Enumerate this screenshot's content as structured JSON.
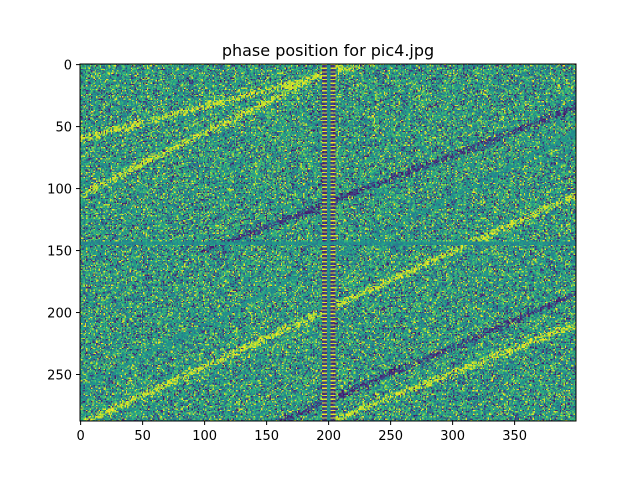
{
  "chart_data": {
    "type": "heatmap",
    "title": "phase position for pic4.jpg",
    "image_width": 400,
    "image_height": 288,
    "colormap": "viridis",
    "origin": "upper",
    "xlim": [
      -0.5,
      399.5
    ],
    "ylim": [
      287.5,
      -0.5
    ],
    "x_ticks": [
      0,
      50,
      100,
      150,
      200,
      250,
      300,
      350
    ],
    "y_ticks": [
      0,
      50,
      100,
      150,
      200,
      250
    ],
    "x_tick_labels": [
      "0",
      "50",
      "100",
      "150",
      "200",
      "250",
      "300",
      "350"
    ],
    "y_tick_labels": [
      "0",
      "50",
      "100",
      "150",
      "200",
      "250"
    ],
    "value_range": [
      -3.14159,
      3.14159
    ],
    "features": {
      "center": [
        200,
        144
      ],
      "vertical_line_x": 200,
      "horizontal_line_y": 144,
      "stripes": [
        {
          "kind": "yellow",
          "from": [
            0,
            60
          ],
          "to": [
            399,
            -45
          ]
        },
        {
          "kind": "yellow",
          "from": [
            0,
            105
          ],
          "to": [
            210,
            0
          ]
        },
        {
          "kind": "purple",
          "from": [
            100,
            150
          ],
          "to": [
            399,
            35
          ]
        },
        {
          "kind": "teal-center",
          "from": [
            0,
            262
          ],
          "to": [
            399,
            55
          ]
        },
        {
          "kind": "yellow",
          "from": [
            0,
            290
          ],
          "to": [
            399,
            105
          ]
        },
        {
          "kind": "purple",
          "from": [
            160,
            288
          ],
          "to": [
            399,
            185
          ]
        },
        {
          "kind": "yellow",
          "from": [
            200,
            288
          ],
          "to": [
            399,
            210
          ]
        }
      ]
    }
  }
}
